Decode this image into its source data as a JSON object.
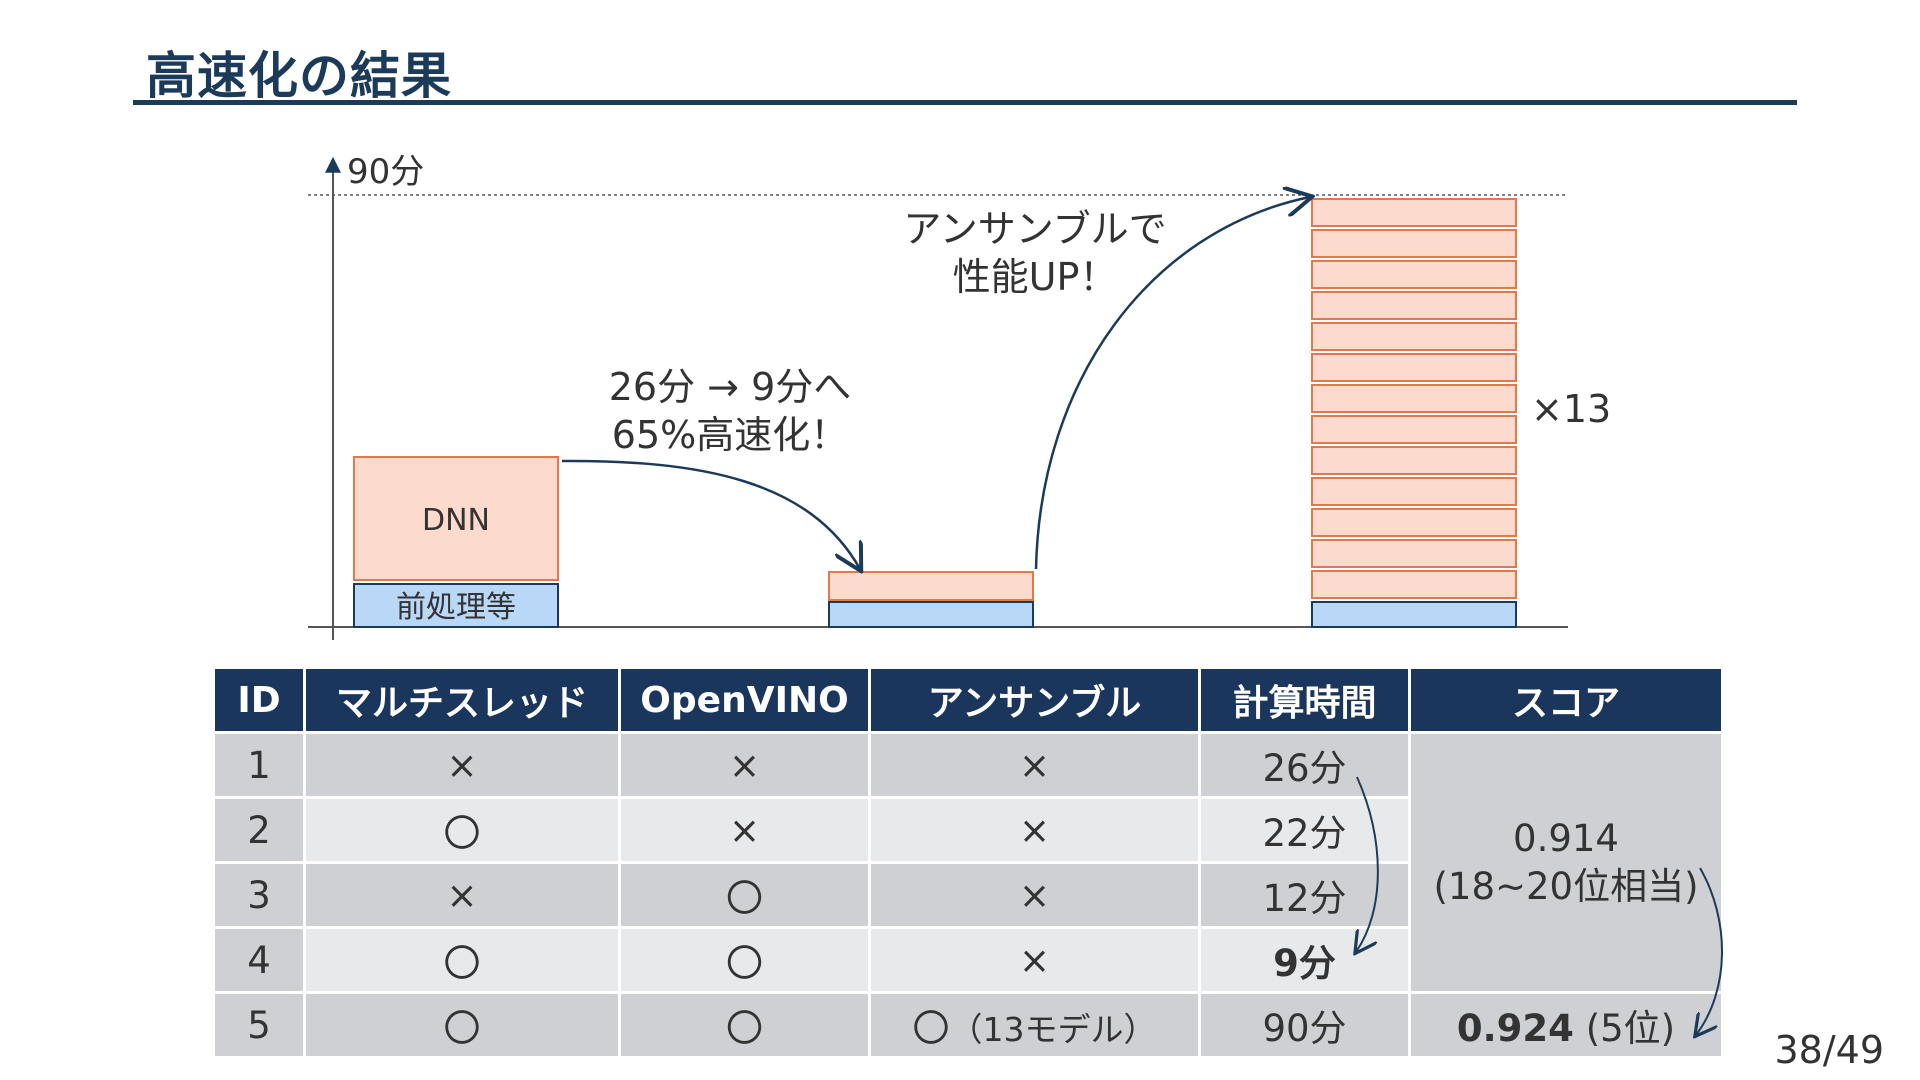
{
  "slide": {
    "title": "高速化の結果",
    "page_number": "38/49"
  },
  "chart": {
    "y_axis_label": "90分",
    "bar1_dnn_label": "DNN",
    "bar1_pre_label": "前処理等",
    "annot_speedup_line1": "26分 → 9分へ",
    "annot_speedup_line2": "65%高速化！",
    "annot_ensemble_line1": "アンサンブルで",
    "annot_ensemble_line2": "性能UP！",
    "stack_multiplier": "×13",
    "colors": {
      "dnn_fill": "#fcdacd",
      "dnn_stroke": "#e07a4a",
      "pre_fill": "#b9d8f7",
      "pre_stroke": "#1c3b5a",
      "arrow": "#1c3b5a"
    }
  },
  "chart_data": {
    "type": "bar",
    "title": "",
    "categories": [
      "",
      "",
      ""
    ],
    "series": [
      {
        "values": [
          0.3,
          0.3,
          0.3
        ]
      },
      {
        "values": [
          0.7,
          0.5,
          6.5
        ]
      }
    ],
    "ylabel": "90分",
    "stacked": true,
    "stack_units": [
      1,
      1,
      13
    ],
    "ylim": [
      0,
      90
    ]
  },
  "table": {
    "headers": [
      "ID",
      "マルチスレッド",
      "OpenVINO",
      "アンサンブル",
      "計算時間",
      "スコア"
    ],
    "rows": [
      {
        "id": "1",
        "multithread": "×",
        "openvino": "×",
        "ensemble": "×",
        "time": "26分"
      },
      {
        "id": "2",
        "multithread": "〇",
        "openvino": "×",
        "ensemble": "×",
        "time": "22分"
      },
      {
        "id": "3",
        "multithread": "×",
        "openvino": "〇",
        "ensemble": "×",
        "time": "12分"
      },
      {
        "id": "4",
        "multithread": "〇",
        "openvino": "〇",
        "ensemble": "×",
        "time": "9分"
      },
      {
        "id": "5",
        "multithread": "〇",
        "openvino": "〇",
        "ensemble_mark": "〇",
        "ensemble_note": "（13モデル）",
        "time": "90分"
      }
    ],
    "score_group": {
      "value": "0.914",
      "note": "(18~20位相当)"
    },
    "score_5": {
      "value": "0.924",
      "note": "(5位)"
    }
  }
}
